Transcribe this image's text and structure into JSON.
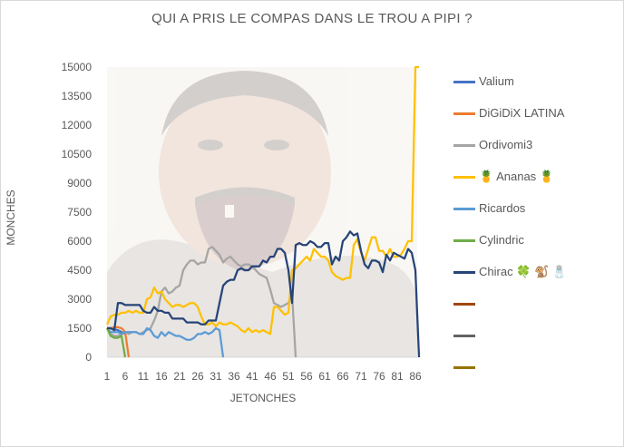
{
  "chart_data": {
    "type": "line",
    "title": "QUI A PRIS LE COMPAS DANS LE TROU A PIPI ?",
    "xlabel": "JETONCHES",
    "ylabel": "MONCHES",
    "ylim": [
      0,
      15000
    ],
    "yticks": [
      0,
      1500,
      3000,
      4500,
      6000,
      7500,
      9000,
      10500,
      12000,
      13500,
      15000
    ],
    "xlim": [
      1,
      87
    ],
    "xticks": [
      1,
      6,
      11,
      16,
      21,
      26,
      31,
      36,
      41,
      46,
      51,
      56,
      61,
      66,
      71,
      76,
      81,
      86
    ],
    "legend_position": "right",
    "grid": false,
    "series": [
      {
        "name": "Valium",
        "color": "#4472c4",
        "x": [
          1,
          2,
          3,
          4,
          5,
          6
        ],
        "values": [
          1500,
          1500,
          1450,
          1400,
          1300,
          1200
        ]
      },
      {
        "name": "DiGiDiX LATINA",
        "color": "#ed7d31",
        "x": [
          1,
          2,
          3,
          4,
          5,
          6,
          7
        ],
        "values": [
          1500,
          1500,
          1550,
          1550,
          1500,
          1300,
          0
        ]
      },
      {
        "name": "Ordivomi3",
        "color": "#a5a5a5",
        "x": [
          1,
          2,
          3,
          4,
          5,
          6,
          7,
          8,
          9,
          10,
          11,
          12,
          13,
          14,
          15,
          16,
          17,
          18,
          19,
          20,
          21,
          22,
          23,
          24,
          25,
          26,
          27,
          28,
          29,
          30,
          31,
          32,
          33,
          34,
          35,
          36,
          37,
          38,
          39,
          40,
          41,
          42,
          43,
          44,
          45,
          46,
          47,
          48,
          49,
          50,
          51,
          52,
          53
        ],
        "values": [
          1500,
          1200,
          1100,
          1100,
          1200,
          1300,
          1200,
          1300,
          1300,
          1200,
          1300,
          1400,
          1500,
          1900,
          2400,
          3400,
          3600,
          3300,
          3400,
          3600,
          3700,
          4500,
          4800,
          5000,
          5000,
          4800,
          4900,
          4900,
          5600,
          5700,
          5500,
          5300,
          4900,
          5100,
          5200,
          5000,
          4800,
          4700,
          4800,
          4800,
          4700,
          4500,
          4300,
          4200,
          4100,
          3500,
          2800,
          2700,
          2600,
          2700,
          2800,
          3300,
          0
        ]
      },
      {
        "name": "🍍 Ananas 🍍",
        "color": "#ffc000",
        "x": [
          1,
          2,
          3,
          4,
          5,
          6,
          7,
          8,
          9,
          10,
          11,
          12,
          13,
          14,
          15,
          16,
          17,
          18,
          19,
          20,
          21,
          22,
          23,
          24,
          25,
          26,
          27,
          28,
          29,
          30,
          31,
          32,
          33,
          34,
          35,
          36,
          37,
          38,
          39,
          40,
          41,
          42,
          43,
          44,
          45,
          46,
          47,
          48,
          49,
          50,
          51,
          52,
          53,
          54,
          55,
          56,
          57,
          58,
          59,
          60,
          61,
          62,
          63,
          64,
          65,
          66,
          67,
          68,
          69,
          70,
          71,
          72,
          73,
          74,
          75,
          76,
          77,
          78,
          79,
          80,
          81,
          82,
          83,
          84,
          85,
          86,
          87
        ],
        "values": [
          1700,
          2100,
          2200,
          2200,
          2300,
          2300,
          2400,
          2300,
          2400,
          2300,
          2300,
          3000,
          3100,
          3600,
          3300,
          3400,
          3000,
          2800,
          2600,
          2700,
          2700,
          2600,
          2700,
          2800,
          2800,
          2600,
          2100,
          1700,
          1700,
          1800,
          1600,
          1800,
          1700,
          1700,
          1800,
          1700,
          1600,
          1400,
          1300,
          1500,
          1300,
          1400,
          1300,
          1400,
          1300,
          1200,
          2600,
          2600,
          2400,
          2200,
          2300,
          4500,
          4600,
          4800,
          5000,
          5200,
          5000,
          5600,
          5400,
          5200,
          5200,
          5000,
          4400,
          4200,
          4100,
          4000,
          4100,
          4100,
          5800,
          6100,
          5400,
          5000,
          5600,
          6200,
          6200,
          5500,
          5500,
          5200,
          5600,
          5200,
          5200,
          5300,
          5600,
          6000,
          6000,
          15000,
          15000
        ]
      },
      {
        "name": "Ricardos",
        "color": "#5b9bd5",
        "x": [
          1,
          2,
          3,
          4,
          5,
          6,
          7,
          8,
          9,
          10,
          11,
          12,
          13,
          14,
          15,
          16,
          17,
          18,
          19,
          20,
          21,
          22,
          23,
          24,
          25,
          26,
          27,
          28,
          29,
          30,
          31,
          32,
          33
        ],
        "values": [
          1500,
          1300,
          1300,
          1300,
          1200,
          1300,
          1300,
          1300,
          1300,
          1200,
          1200,
          1500,
          1400,
          1100,
          1000,
          1300,
          1100,
          1300,
          1200,
          1100,
          1100,
          1000,
          900,
          900,
          1000,
          1200,
          1200,
          1300,
          1200,
          1300,
          1500,
          1400,
          0
        ]
      },
      {
        "name": "Cylindric",
        "color": "#70ad47",
        "x": [
          1,
          2,
          3,
          4,
          5,
          6
        ],
        "values": [
          1500,
          1100,
          1000,
          1000,
          1100,
          0
        ]
      },
      {
        "name": "Chirac 🍀 🐒 🧂",
        "color": "#264478",
        "x": [
          1,
          2,
          3,
          4,
          5,
          6,
          7,
          8,
          9,
          10,
          11,
          12,
          13,
          14,
          15,
          16,
          17,
          18,
          19,
          20,
          21,
          22,
          23,
          24,
          25,
          26,
          27,
          28,
          29,
          30,
          31,
          32,
          33,
          34,
          35,
          36,
          37,
          38,
          39,
          40,
          41,
          42,
          43,
          44,
          45,
          46,
          47,
          48,
          49,
          50,
          51,
          52,
          53,
          54,
          55,
          56,
          57,
          58,
          59,
          60,
          61,
          62,
          63,
          64,
          65,
          66,
          67,
          68,
          69,
          70,
          71,
          72,
          73,
          74,
          75,
          76,
          77,
          78,
          79,
          80,
          81,
          82,
          83,
          84,
          85,
          86,
          87
        ],
        "values": [
          1500,
          1500,
          1400,
          2800,
          2800,
          2700,
          2700,
          2700,
          2700,
          2700,
          2400,
          2300,
          2300,
          2600,
          2400,
          2400,
          2300,
          2300,
          2000,
          2000,
          2000,
          2000,
          1800,
          1800,
          1800,
          1800,
          1700,
          1700,
          1900,
          1900,
          1900,
          2800,
          3700,
          3900,
          4000,
          4000,
          4500,
          4600,
          4500,
          4500,
          4700,
          4700,
          4700,
          5000,
          4900,
          5200,
          5200,
          5600,
          5600,
          5400,
          4500,
          2800,
          5800,
          5900,
          5800,
          5800,
          6000,
          5900,
          5700,
          5700,
          5900,
          5900,
          4800,
          5200,
          5000,
          6000,
          6200,
          6500,
          6300,
          6400,
          5500,
          4800,
          4600,
          5000,
          5000,
          4900,
          4400,
          5300,
          5000,
          5400,
          5300,
          5200,
          5100,
          5600,
          5400,
          4500,
          0
        ]
      },
      {
        "name": "",
        "color": "#9e480e",
        "x": [],
        "values": []
      },
      {
        "name": "",
        "color": "#636363",
        "x": [],
        "values": []
      },
      {
        "name": "",
        "color": "#997300",
        "x": [],
        "values": []
      }
    ]
  }
}
